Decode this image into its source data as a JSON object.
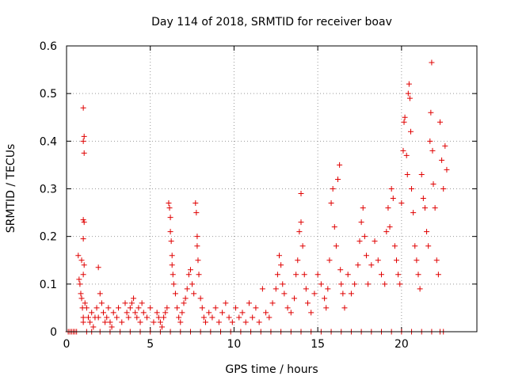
{
  "chart_data": {
    "type": "scatter",
    "title": "Day 114 of 2018, SRMTID for receiver boav",
    "xlabel": "GPS time / hours",
    "ylabel": "SRMTID / TECUs",
    "xlim": [
      0,
      24.5
    ],
    "ylim": [
      0,
      0.6
    ],
    "x_ticks": [
      0,
      5,
      10,
      15,
      20
    ],
    "x_tick_labels": [
      "0",
      "5",
      "10",
      "15",
      "20"
    ],
    "y_ticks": [
      0,
      0.1,
      0.2,
      0.3,
      0.4,
      0.5,
      0.6
    ],
    "y_tick_labels": [
      "0",
      "0.1",
      "0.2",
      "0.3",
      "0.4",
      "0.5",
      "0.6"
    ],
    "grid": true,
    "marker": "+",
    "color": "#e00000",
    "series": [
      {
        "name": "SRMTID",
        "points": [
          [
            0.1,
            0
          ],
          [
            0.2,
            0
          ],
          [
            0.3,
            0
          ],
          [
            0.4,
            0
          ],
          [
            0.5,
            0
          ],
          [
            0.6,
            0
          ],
          [
            0.7,
            0.16
          ],
          [
            0.75,
            0.11
          ],
          [
            0.8,
            0.1
          ],
          [
            0.85,
            0.08
          ],
          [
            0.9,
            0.07
          ],
          [
            0.95,
            0.05
          ],
          [
            0.9,
            0.15
          ],
          [
            1.0,
            0.02
          ],
          [
            1.0,
            0.03
          ],
          [
            1.0,
            0.47
          ],
          [
            1.05,
            0.41
          ],
          [
            1.0,
            0.4
          ],
          [
            1.05,
            0.375
          ],
          [
            1.0,
            0.235
          ],
          [
            1.05,
            0.23
          ],
          [
            1.0,
            0.195
          ],
          [
            1.05,
            0.14
          ],
          [
            1.0,
            0.12
          ],
          [
            1.1,
            0.06
          ],
          [
            1.2,
            0.05
          ],
          [
            1.3,
            0.03
          ],
          [
            1.4,
            0.02
          ],
          [
            1.5,
            0.04
          ],
          [
            1.6,
            0.01
          ],
          [
            1.7,
            0.03
          ],
          [
            1.8,
            0.05
          ],
          [
            1.9,
            0.03
          ],
          [
            1.9,
            0.135
          ],
          [
            2.0,
            0.08
          ],
          [
            2.1,
            0.06
          ],
          [
            2.2,
            0.04
          ],
          [
            2.3,
            0.02
          ],
          [
            2.4,
            0.03
          ],
          [
            2.5,
            0.05
          ],
          [
            2.6,
            0.02
          ],
          [
            2.7,
            0.01
          ],
          [
            2.8,
            0.04
          ],
          [
            3.0,
            0.03
          ],
          [
            3.1,
            0.05
          ],
          [
            3.3,
            0.02
          ],
          [
            3.5,
            0.06
          ],
          [
            3.6,
            0.04
          ],
          [
            3.7,
            0.03
          ],
          [
            3.8,
            0.05
          ],
          [
            3.9,
            0.06
          ],
          [
            4.0,
            0.07
          ],
          [
            4.1,
            0.04
          ],
          [
            4.2,
            0.03
          ],
          [
            4.3,
            0.05
          ],
          [
            4.4,
            0.02
          ],
          [
            4.5,
            0.06
          ],
          [
            4.6,
            0.04
          ],
          [
            4.8,
            0.03
          ],
          [
            5.0,
            0.05
          ],
          [
            5.2,
            0.02
          ],
          [
            5.4,
            0.04
          ],
          [
            5.5,
            0.03
          ],
          [
            5.6,
            0.02
          ],
          [
            5.7,
            0.01
          ],
          [
            5.8,
            0.03
          ],
          [
            5.9,
            0.04
          ],
          [
            6.0,
            0.05
          ],
          [
            6.1,
            0.27
          ],
          [
            6.15,
            0.26
          ],
          [
            6.2,
            0.24
          ],
          [
            6.2,
            0.21
          ],
          [
            6.25,
            0.19
          ],
          [
            6.3,
            0.16
          ],
          [
            6.3,
            0.14
          ],
          [
            6.35,
            0.12
          ],
          [
            6.4,
            0.1
          ],
          [
            6.5,
            0.08
          ],
          [
            6.6,
            0.05
          ],
          [
            6.7,
            0.03
          ],
          [
            6.8,
            0.02
          ],
          [
            6.9,
            0.04
          ],
          [
            7.0,
            0.06
          ],
          [
            7.1,
            0.07
          ],
          [
            7.2,
            0.09
          ],
          [
            7.3,
            0.12
          ],
          [
            7.4,
            0.13
          ],
          [
            7.5,
            0.1
          ],
          [
            7.6,
            0.08
          ],
          [
            7.7,
            0.27
          ],
          [
            7.75,
            0.25
          ],
          [
            7.8,
            0.2
          ],
          [
            7.8,
            0.18
          ],
          [
            7.85,
            0.15
          ],
          [
            7.9,
            0.12
          ],
          [
            8.0,
            0.07
          ],
          [
            8.1,
            0.05
          ],
          [
            8.2,
            0.03
          ],
          [
            8.3,
            0.02
          ],
          [
            8.5,
            0.04
          ],
          [
            8.7,
            0.03
          ],
          [
            8.9,
            0.05
          ],
          [
            9.1,
            0.02
          ],
          [
            9.3,
            0.04
          ],
          [
            9.5,
            0.06
          ],
          [
            9.7,
            0.03
          ],
          [
            9.9,
            0.02
          ],
          [
            10.1,
            0.05
          ],
          [
            10.3,
            0.03
          ],
          [
            10.5,
            0.04
          ],
          [
            10.7,
            0.02
          ],
          [
            10.9,
            0.06
          ],
          [
            11.1,
            0.03
          ],
          [
            11.3,
            0.05
          ],
          [
            11.5,
            0.02
          ],
          [
            11.7,
            0.09
          ],
          [
            11.9,
            0.04
          ],
          [
            12.1,
            0.03
          ],
          [
            12.3,
            0.06
          ],
          [
            12.5,
            0.09
          ],
          [
            12.6,
            0.12
          ],
          [
            12.7,
            0.16
          ],
          [
            12.8,
            0.14
          ],
          [
            12.9,
            0.1
          ],
          [
            13.0,
            0.08
          ],
          [
            13.2,
            0.05
          ],
          [
            13.4,
            0.04
          ],
          [
            13.6,
            0.07
          ],
          [
            13.7,
            0.12
          ],
          [
            13.8,
            0.15
          ],
          [
            13.9,
            0.21
          ],
          [
            14.0,
            0.23
          ],
          [
            14.0,
            0.29
          ],
          [
            14.1,
            0.18
          ],
          [
            14.2,
            0.12
          ],
          [
            14.3,
            0.09
          ],
          [
            14.4,
            0.06
          ],
          [
            14.6,
            0.04
          ],
          [
            14.8,
            0.08
          ],
          [
            15.0,
            0.12
          ],
          [
            15.2,
            0.1
          ],
          [
            15.4,
            0.07
          ],
          [
            15.5,
            0.05
          ],
          [
            15.6,
            0.09
          ],
          [
            15.7,
            0.15
          ],
          [
            15.8,
            0.27
          ],
          [
            15.9,
            0.3
          ],
          [
            16.0,
            0.22
          ],
          [
            16.1,
            0.18
          ],
          [
            16.2,
            0.32
          ],
          [
            16.3,
            0.35
          ],
          [
            16.35,
            0.13
          ],
          [
            16.4,
            0.1
          ],
          [
            16.5,
            0.08
          ],
          [
            16.6,
            0.05
          ],
          [
            16.8,
            0.12
          ],
          [
            17.0,
            0.08
          ],
          [
            17.2,
            0.1
          ],
          [
            17.4,
            0.14
          ],
          [
            17.5,
            0.19
          ],
          [
            17.6,
            0.23
          ],
          [
            17.7,
            0.26
          ],
          [
            17.8,
            0.2
          ],
          [
            17.9,
            0.16
          ],
          [
            18.0,
            0.1
          ],
          [
            18.2,
            0.14
          ],
          [
            18.4,
            0.19
          ],
          [
            18.6,
            0.15
          ],
          [
            18.8,
            0.12
          ],
          [
            19.0,
            0.1
          ],
          [
            19.1,
            0.21
          ],
          [
            19.2,
            0.26
          ],
          [
            19.3,
            0.22
          ],
          [
            19.4,
            0.3
          ],
          [
            19.5,
            0.28
          ],
          [
            19.6,
            0.18
          ],
          [
            19.7,
            0.15
          ],
          [
            19.8,
            0.12
          ],
          [
            19.9,
            0.1
          ],
          [
            20.0,
            0.27
          ],
          [
            20.1,
            0.38
          ],
          [
            20.15,
            0.44
          ],
          [
            20.2,
            0.45
          ],
          [
            20.3,
            0.37
          ],
          [
            20.35,
            0.33
          ],
          [
            20.4,
            0.5
          ],
          [
            20.45,
            0.52
          ],
          [
            20.5,
            0.49
          ],
          [
            20.55,
            0.42
          ],
          [
            20.6,
            0.3
          ],
          [
            20.7,
            0.25
          ],
          [
            20.8,
            0.18
          ],
          [
            20.9,
            0.15
          ],
          [
            21.0,
            0.12
          ],
          [
            21.1,
            0.09
          ],
          [
            21.2,
            0.33
          ],
          [
            21.3,
            0.28
          ],
          [
            21.4,
            0.26
          ],
          [
            21.5,
            0.21
          ],
          [
            21.6,
            0.18
          ],
          [
            21.7,
            0.4
          ],
          [
            21.75,
            0.46
          ],
          [
            21.8,
            0.565
          ],
          [
            21.85,
            0.38
          ],
          [
            21.9,
            0.31
          ],
          [
            22.0,
            0.26
          ],
          [
            22.1,
            0.15
          ],
          [
            22.2,
            0.12
          ],
          [
            22.3,
            0.44
          ],
          [
            22.4,
            0.36
          ],
          [
            22.5,
            0.3
          ],
          [
            22.6,
            0.39
          ],
          [
            22.7,
            0.34
          ],
          [
            1.2,
            0
          ],
          [
            1.5,
            0
          ],
          [
            2.0,
            0
          ],
          [
            2.6,
            0
          ],
          [
            3.2,
            0
          ],
          [
            3.8,
            0
          ],
          [
            4.4,
            0
          ],
          [
            5.0,
            0
          ],
          [
            5.6,
            0
          ],
          [
            6.2,
            0
          ],
          [
            6.8,
            0
          ],
          [
            7.4,
            0
          ],
          [
            8.0,
            0
          ],
          [
            8.6,
            0
          ],
          [
            9.2,
            0
          ],
          [
            9.8,
            0
          ],
          [
            10.4,
            0
          ],
          [
            11.0,
            0
          ],
          [
            11.6,
            0
          ],
          [
            12.2,
            0
          ],
          [
            12.8,
            0
          ],
          [
            13.4,
            0
          ],
          [
            14.0,
            0
          ],
          [
            14.6,
            0
          ],
          [
            15.2,
            0
          ],
          [
            15.8,
            0
          ],
          [
            16.4,
            0
          ],
          [
            17.0,
            0
          ],
          [
            17.6,
            0
          ],
          [
            18.2,
            0
          ],
          [
            18.8,
            0
          ],
          [
            19.4,
            0
          ],
          [
            20.0,
            0
          ],
          [
            20.6,
            0
          ],
          [
            21.2,
            0
          ],
          [
            21.8,
            0
          ],
          [
            22.3,
            0
          ],
          [
            22.5,
            0
          ]
        ]
      }
    ]
  }
}
